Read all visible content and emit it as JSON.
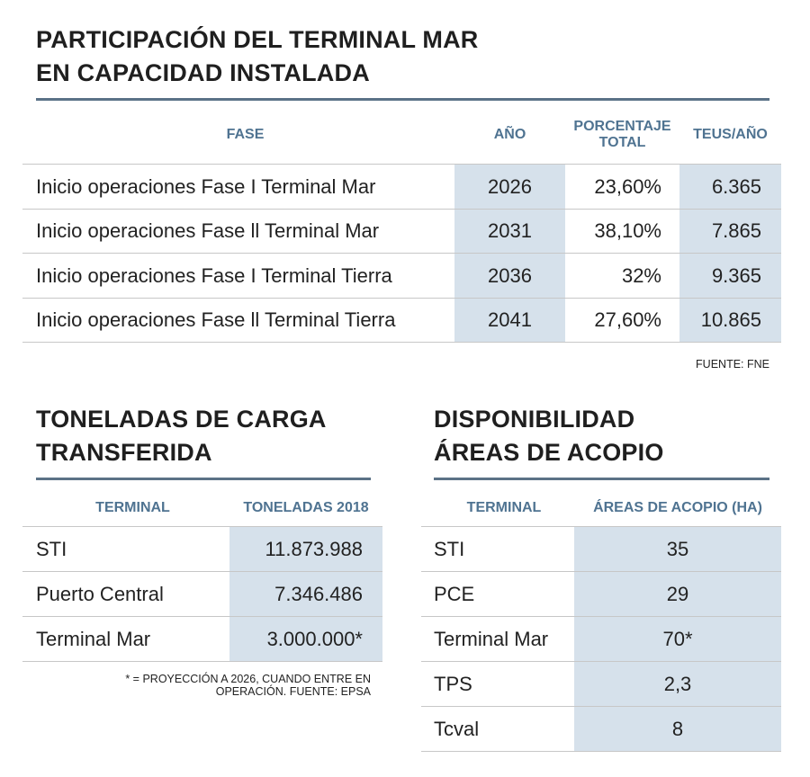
{
  "main": {
    "title": [
      "PARTICIPACIÓN DEL TERMINAL MAR",
      "EN CAPACIDAD INSTALADA"
    ],
    "table": {
      "headers": [
        "FASE",
        "AÑO",
        "PORCENTAJE TOTAL",
        "TEUS/AÑO"
      ],
      "rows": [
        [
          "Inicio operaciones Fase I Terminal Mar",
          "2026",
          "23,60%",
          "6.365"
        ],
        [
          "Inicio operaciones Fase ll Terminal Mar",
          "2031",
          "38,10%",
          "7.865"
        ],
        [
          "Inicio operaciones Fase I Terminal Tierra",
          "2036",
          "32%",
          "9.365"
        ],
        [
          "Inicio operaciones Fase ll Terminal Tierra",
          "2041",
          "27,60%",
          "10.865"
        ]
      ]
    },
    "source": "FUENTE: FNE"
  },
  "cargo": {
    "title": [
      "TONELADAS DE CARGA",
      "TRANSFERIDA"
    ],
    "table": {
      "headers": [
        "TERMINAL",
        "TONELADAS 2018"
      ],
      "rows": [
        [
          "STI",
          "11.873.988"
        ],
        [
          "Puerto Central",
          "7.346.486"
        ],
        [
          "Terminal Mar",
          "3.000.000*"
        ]
      ]
    },
    "note": [
      "* = PROYECCIÓN A 2026, CUANDO ENTRE EN",
      "OPERACIÓN. FUENTE: EPSA"
    ]
  },
  "storage": {
    "title": [
      "DISPONIBILIDAD",
      "ÁREAS DE ACOPIO"
    ],
    "table": {
      "headers": [
        "TERMINAL",
        "ÁREAS DE ACOPIO (HA)"
      ],
      "rows": [
        [
          "STI",
          "35"
        ],
        [
          "PCE",
          "29"
        ],
        [
          "Terminal Mar",
          "70*"
        ],
        [
          "TPS",
          "2,3"
        ],
        [
          "Tcval",
          "8"
        ]
      ]
    }
  }
}
